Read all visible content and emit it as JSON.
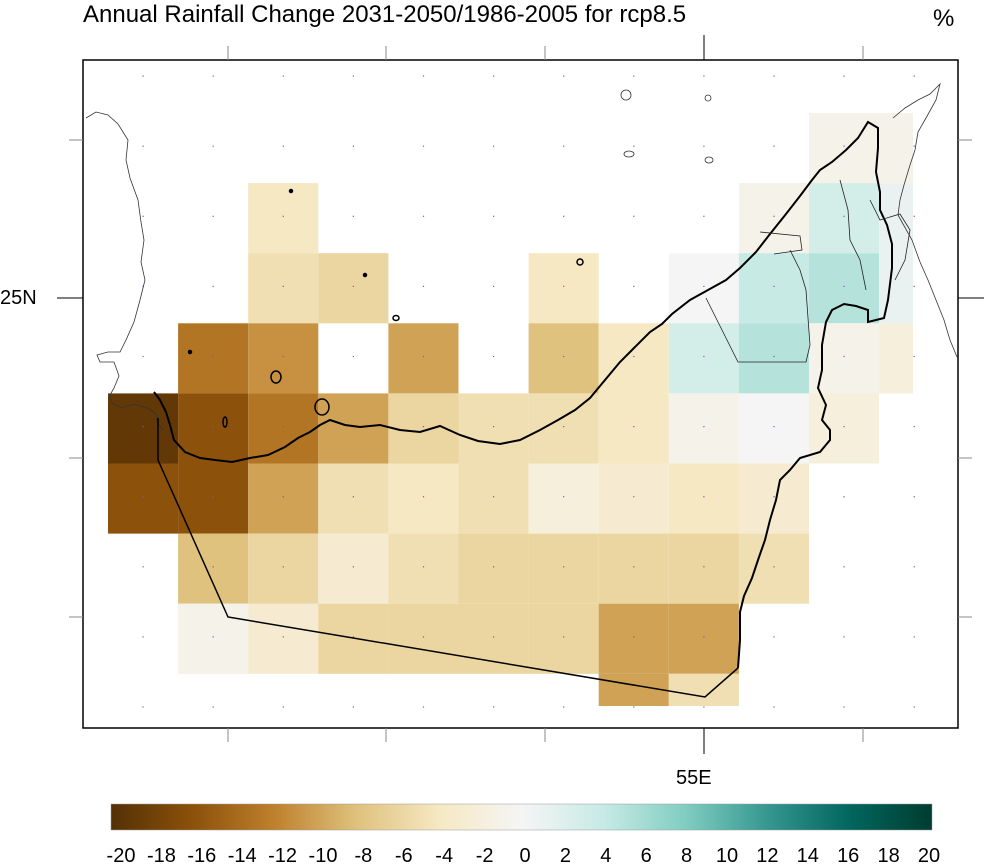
{
  "chart_data": {
    "type": "heatmap",
    "title": "Annual Rainfall Change 2031-2050/1986-2005 for rcp8.5",
    "units": "%",
    "xlabel": "",
    "ylabel": "",
    "x_tick_labels": [
      {
        "value": 55,
        "label": "55E"
      }
    ],
    "y_tick_labels": [
      {
        "value": 25,
        "label": "25N"
      }
    ],
    "grid_points": true,
    "colorbar": {
      "ticks": [
        "-20",
        "-18",
        "-16",
        "-14",
        "-12",
        "-10",
        "-8",
        "-6",
        "-4",
        "-2",
        "0",
        "2",
        "4",
        "6",
        "8",
        "10",
        "12",
        "14",
        "16",
        "18",
        "20"
      ],
      "range": [
        -20,
        20
      ],
      "colors": [
        "#543005",
        "#8c510a",
        "#bf812d",
        "#dfc27d",
        "#f6e8c3",
        "#f5f5f5",
        "#c7eae5",
        "#80cdc1",
        "#35978f",
        "#01665e",
        "#003c30"
      ]
    },
    "grid_cells_note": "rows top to bottom, columns west to east; null = no data",
    "rows": [
      [
        null,
        null,
        null,
        null,
        null,
        null,
        null,
        null,
        null,
        null,
        -1,
        -1
      ],
      [
        null,
        null,
        -4,
        null,
        null,
        null,
        null,
        null,
        null,
        -1,
        3,
        1
      ],
      [
        null,
        null,
        -5,
        -6,
        null,
        null,
        -4,
        null,
        0,
        4,
        5,
        1
      ],
      [
        null,
        -13,
        -11,
        null,
        -10,
        null,
        -8,
        -4,
        3,
        5,
        -1,
        -2
      ],
      [
        -19,
        -16,
        -13,
        -10,
        -6,
        -5,
        -5,
        -4,
        -1,
        0,
        -2,
        null
      ],
      [
        -16,
        -16,
        -10,
        -5,
        -4,
        -5,
        -2,
        -3,
        -4,
        -3,
        null,
        null
      ],
      [
        null,
        -8,
        -6,
        -3,
        -5,
        -6,
        -6,
        -6,
        -6,
        -5,
        null,
        null
      ],
      [
        null,
        -1,
        -3,
        -6,
        -6,
        -6,
        -6,
        -10,
        -10,
        null,
        null,
        null
      ],
      [
        null,
        null,
        null,
        null,
        null,
        null,
        null,
        -10,
        -5,
        null,
        null,
        null
      ]
    ]
  }
}
